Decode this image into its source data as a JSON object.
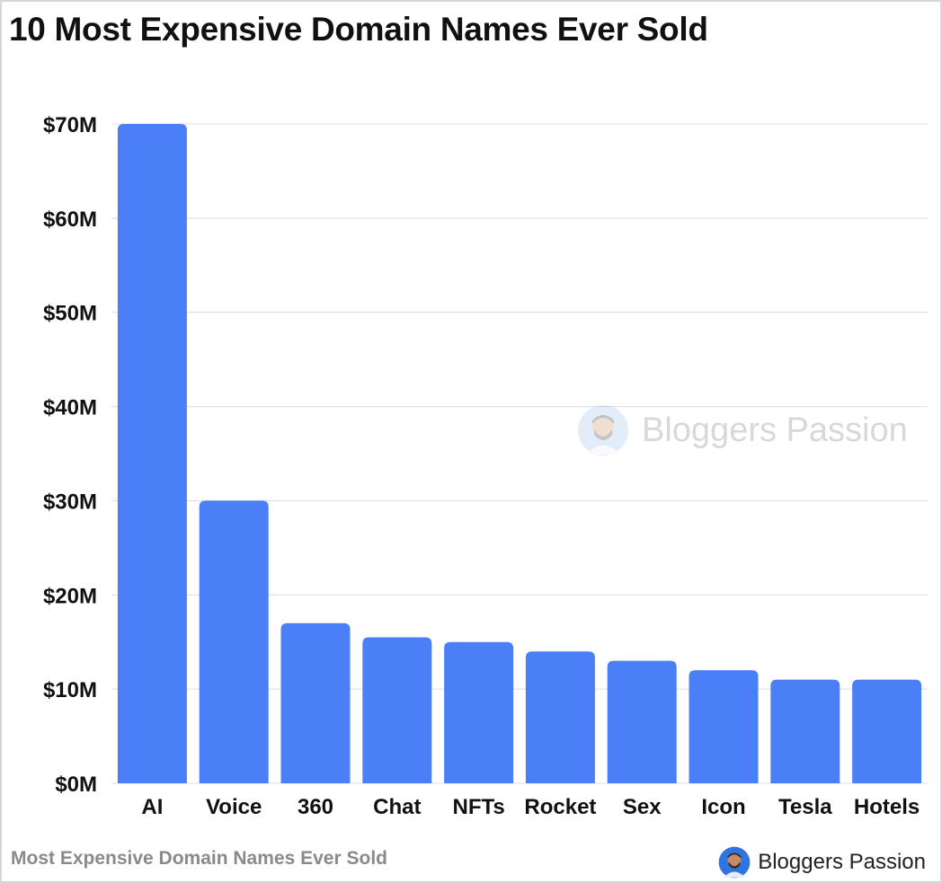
{
  "title": "10 Most Expensive Domain Names Ever Sold",
  "footer": {
    "caption": "Most Expensive Domain Names Ever Sold",
    "brand": "Bloggers Passion"
  },
  "watermark": {
    "text": "Bloggers Passion"
  },
  "colors": {
    "bar": "#4A7FF7",
    "grid": "#dcdcdc",
    "text": "#111111"
  },
  "chart_data": {
    "type": "bar",
    "title": "10 Most Expensive Domain Names Ever Sold",
    "categories": [
      "AI",
      "Voice",
      "360",
      "Chat",
      "NFTs",
      "Rocket",
      "Sex",
      "Icon",
      "Tesla",
      "Hotels"
    ],
    "values": [
      70,
      30,
      17,
      15.5,
      15,
      14,
      13,
      12,
      11,
      11
    ],
    "yticks": [
      "$0M",
      "$10M",
      "$20M",
      "$30M",
      "$40M",
      "$50M",
      "$60M",
      "$70M"
    ],
    "ylim": [
      0,
      70
    ],
    "unit": "USD millions",
    "grid": true,
    "legend": false
  }
}
